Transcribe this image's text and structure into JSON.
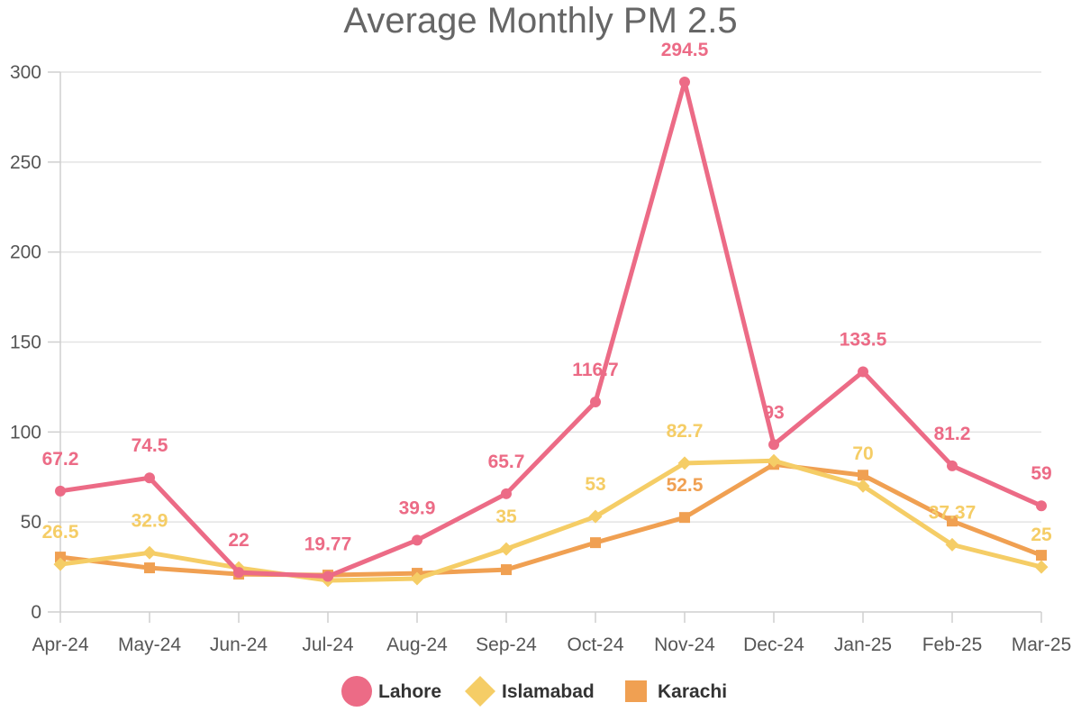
{
  "chart_data": {
    "type": "line",
    "title": "Average Monthly PM 2.5",
    "xlabel": "",
    "ylabel": "",
    "ylim": [
      0,
      300
    ],
    "yticks": [
      0,
      50,
      100,
      150,
      200,
      250,
      300
    ],
    "categories": [
      "Apr-24",
      "May-24",
      "Jun-24",
      "Jul-24",
      "Aug-24",
      "Sep-24",
      "Oct-24",
      "Nov-24",
      "Dec-24",
      "Jan-25",
      "Feb-25",
      "Mar-25"
    ],
    "grid": true,
    "legend_position": "bottom",
    "series": [
      {
        "name": "Lahore",
        "color": "#ec6b86",
        "marker": "circle",
        "values": [
          67.2,
          74.5,
          22,
          19.77,
          39.9,
          65.7,
          116.7,
          294.5,
          93,
          133.5,
          81.2,
          59
        ],
        "labels": [
          "67.2",
          "74.5",
          "22",
          "19.77",
          "39.9",
          "65.7",
          "116.7",
          "294.5",
          "93",
          "133.5",
          "81.2",
          "59"
        ]
      },
      {
        "name": "Islamabad",
        "color": "#f5cd66",
        "marker": "diamond",
        "values": [
          26.5,
          32.9,
          24.5,
          17.5,
          18.5,
          35,
          53,
          82.7,
          84,
          70,
          37.37,
          25
        ],
        "labels": [
          "26.5",
          "32.9",
          null,
          null,
          null,
          "35",
          "53",
          "82.7",
          null,
          "70",
          "37.37",
          "25"
        ]
      },
      {
        "name": "Karachi",
        "color": "#f0a052",
        "marker": "square",
        "values": [
          30.5,
          24.5,
          21,
          20.5,
          21.5,
          23.5,
          38.5,
          52.5,
          82,
          76,
          50.5,
          31.5
        ],
        "labels": [
          null,
          null,
          null,
          null,
          null,
          null,
          null,
          "52.5",
          null,
          null,
          null,
          null
        ]
      }
    ]
  }
}
